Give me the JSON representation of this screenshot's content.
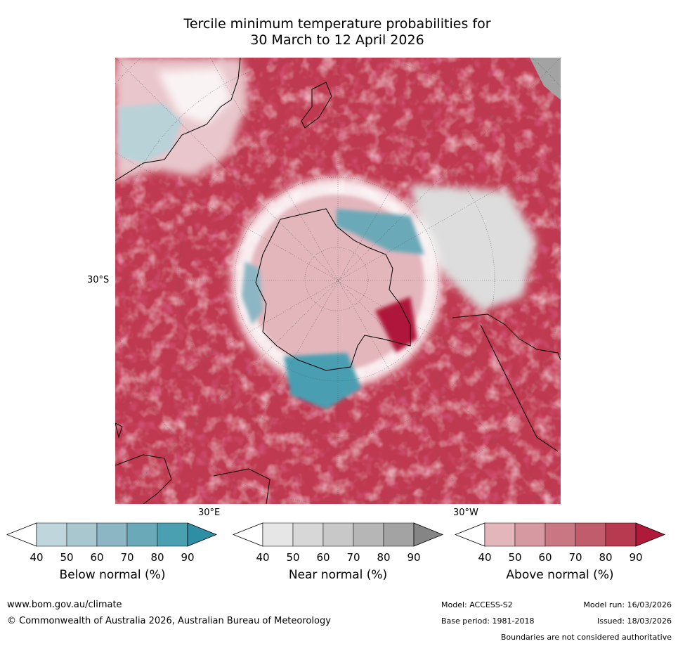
{
  "title": {
    "line1": "Tercile minimum temperature probabilities for",
    "line2": "30 March to 12 April 2026"
  },
  "map": {
    "lat_label": "30°S",
    "lon_labels": [
      "30°E",
      "30°W"
    ],
    "projection": "south-polar-stereographic",
    "regions": [
      "Antarctica",
      "Australia",
      "New Zealand",
      "South America",
      "Africa",
      "Madagascar"
    ]
  },
  "colorbars": [
    {
      "title": "Below normal (%)",
      "ticks": [
        "40",
        "50",
        "60",
        "70",
        "80",
        "90"
      ],
      "colors": [
        "#ffffff",
        "#bfd6dc",
        "#a8c7cf",
        "#8cb6c3",
        "#6aa9b8",
        "#4a9fb1",
        "#2e8ea3"
      ]
    },
    {
      "title": "Near normal (%)",
      "ticks": [
        "40",
        "50",
        "60",
        "70",
        "80",
        "90"
      ],
      "colors": [
        "#ffffff",
        "#e6e6e6",
        "#d7d7d7",
        "#c8c8c8",
        "#b6b6b6",
        "#a3a3a3",
        "#858585"
      ]
    },
    {
      "title": "Above normal (%)",
      "ticks": [
        "40",
        "50",
        "60",
        "70",
        "80",
        "90"
      ],
      "colors": [
        "#ffffff",
        "#e3b6bc",
        "#d799a1",
        "#c97783",
        "#c05c6b",
        "#b83a50",
        "#b0193a"
      ]
    }
  ],
  "footer": {
    "url": "www.bom.gov.au/climate",
    "copyright": "© Commonwealth of Australia 2026, Australian Bureau of Meteorology",
    "model": "Model: ACCESS-S2",
    "model_run": "Model run: 16/03/2026",
    "base_period": "Base period: 1981-2018",
    "issued": "Issued: 18/03/2026",
    "disclaimer": "Boundaries are not considered authoritative"
  }
}
